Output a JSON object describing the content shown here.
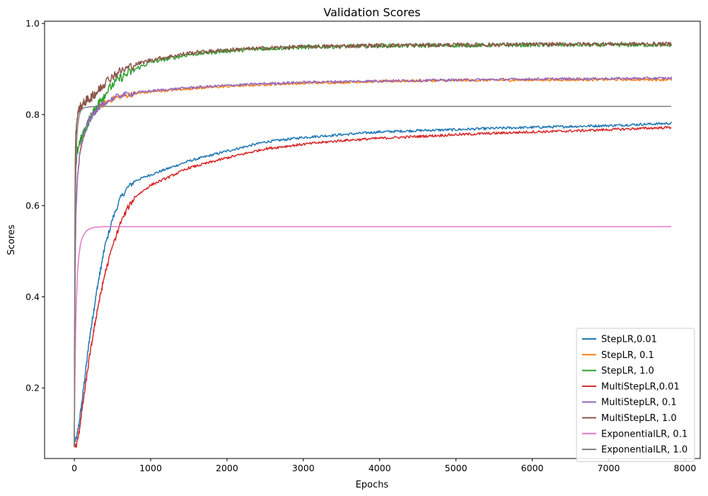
{
  "chart_data": {
    "type": "line",
    "title": "Validation Scores",
    "xlabel": "Epochs",
    "ylabel": "Scores",
    "xlim": [
      -390,
      8200
    ],
    "ylim": [
      0.045,
      1.005
    ],
    "xticks": [
      0,
      1000,
      2000,
      3000,
      4000,
      5000,
      6000,
      7000,
      8000
    ],
    "yticks": [
      0.2,
      0.4,
      0.6,
      0.8,
      1.0
    ],
    "xtick_labels": [
      "0",
      "1000",
      "2000",
      "3000",
      "4000",
      "5000",
      "6000",
      "7000",
      "8000"
    ],
    "ytick_labels": [
      "0.2",
      "0.4",
      "0.6",
      "0.8",
      "1.0"
    ],
    "grid": false,
    "legend_position": "lower-right",
    "series": [
      {
        "name": "StepLR,0.01",
        "color": "#1f77b4",
        "x": [
          0,
          30,
          60,
          100,
          150,
          200,
          300,
          400,
          500,
          600,
          700,
          800,
          1000,
          1200,
          1500,
          2000,
          2500,
          3000,
          3500,
          4000,
          4500,
          5000,
          5500,
          6000,
          6500,
          7000,
          7500,
          7820
        ],
        "y": [
          0.08,
          0.09,
          0.12,
          0.17,
          0.24,
          0.31,
          0.42,
          0.51,
          0.57,
          0.615,
          0.64,
          0.655,
          0.668,
          0.68,
          0.698,
          0.72,
          0.74,
          0.75,
          0.756,
          0.762,
          0.765,
          0.767,
          0.77,
          0.772,
          0.774,
          0.776,
          0.779,
          0.781
        ]
      },
      {
        "name": "StepLR, 0.1",
        "color": "#ff7f0e",
        "x": [
          0,
          10,
          20,
          40,
          70,
          100,
          150,
          200,
          300,
          400,
          500,
          600,
          800,
          1000,
          1500,
          2000,
          2500,
          3000,
          4000,
          5000,
          6000,
          7000,
          7820
        ],
        "y": [
          0.07,
          0.45,
          0.58,
          0.66,
          0.71,
          0.74,
          0.77,
          0.79,
          0.812,
          0.826,
          0.834,
          0.84,
          0.846,
          0.85,
          0.857,
          0.862,
          0.866,
          0.869,
          0.873,
          0.875,
          0.876,
          0.877,
          0.877
        ]
      },
      {
        "name": "StepLR, 1.0",
        "color": "#2ca02c",
        "x": [
          0,
          10,
          20,
          40,
          70,
          100,
          150,
          200,
          300,
          400,
          500,
          600,
          800,
          1000,
          1500,
          2000,
          2500,
          3000,
          4000,
          5000,
          6000,
          7000,
          7820
        ],
        "y": [
          0.07,
          0.6,
          0.68,
          0.72,
          0.74,
          0.75,
          0.77,
          0.79,
          0.82,
          0.845,
          0.865,
          0.88,
          0.9,
          0.915,
          0.932,
          0.94,
          0.945,
          0.948,
          0.951,
          0.952,
          0.953,
          0.953,
          0.953
        ]
      },
      {
        "name": "MultiStepLR,0.01",
        "color": "#d62728",
        "x": [
          0,
          30,
          60,
          100,
          150,
          200,
          300,
          400,
          500,
          600,
          700,
          800,
          1000,
          1200,
          1500,
          2000,
          2500,
          3000,
          3500,
          4000,
          4500,
          5000,
          5500,
          6000,
          6500,
          7000,
          7500,
          7820
        ],
        "y": [
          0.07,
          0.075,
          0.1,
          0.15,
          0.21,
          0.27,
          0.37,
          0.45,
          0.51,
          0.56,
          0.595,
          0.62,
          0.645,
          0.66,
          0.683,
          0.705,
          0.725,
          0.735,
          0.743,
          0.748,
          0.752,
          0.756,
          0.759,
          0.762,
          0.764,
          0.767,
          0.77,
          0.772
        ]
      },
      {
        "name": "MultiStepLR, 0.1",
        "color": "#9467bd",
        "x": [
          0,
          10,
          20,
          40,
          70,
          100,
          150,
          200,
          300,
          400,
          500,
          600,
          800,
          1000,
          1500,
          2000,
          2500,
          3000,
          4000,
          5000,
          6000,
          7000,
          7820
        ],
        "y": [
          0.07,
          0.45,
          0.58,
          0.66,
          0.71,
          0.74,
          0.77,
          0.79,
          0.812,
          0.826,
          0.835,
          0.842,
          0.848,
          0.852,
          0.859,
          0.864,
          0.868,
          0.871,
          0.874,
          0.876,
          0.878,
          0.879,
          0.88
        ]
      },
      {
        "name": "MultiStepLR, 1.0",
        "color": "#8c564b",
        "x": [
          0,
          10,
          20,
          40,
          70,
          100,
          150,
          200,
          300,
          400,
          500,
          600,
          800,
          1000,
          1500,
          2000,
          2500,
          3000,
          4000,
          5000,
          6000,
          7000,
          7820
        ],
        "y": [
          0.07,
          0.68,
          0.76,
          0.8,
          0.815,
          0.82,
          0.83,
          0.835,
          0.85,
          0.87,
          0.885,
          0.895,
          0.91,
          0.92,
          0.935,
          0.942,
          0.946,
          0.949,
          0.952,
          0.953,
          0.954,
          0.955,
          0.955
        ]
      },
      {
        "name": "ExponentialLR, 0.1",
        "color": "#e377c2",
        "x": [
          0,
          10,
          20,
          40,
          60,
          80,
          100,
          130,
          160,
          200,
          250,
          300,
          400,
          600,
          1000,
          3000,
          5000,
          7820
        ],
        "y": [
          0.1,
          0.25,
          0.35,
          0.45,
          0.49,
          0.515,
          0.528,
          0.538,
          0.545,
          0.549,
          0.552,
          0.553,
          0.554,
          0.554,
          0.554,
          0.554,
          0.554,
          0.554
        ]
      },
      {
        "name": "ExponentialLR, 1.0",
        "color": "#7f7f7f",
        "x": [
          0,
          5,
          10,
          20,
          30,
          40,
          60,
          80,
          100,
          130,
          160,
          200,
          300,
          500,
          1000,
          3000,
          5000,
          7820
        ],
        "y": [
          0.07,
          0.35,
          0.55,
          0.68,
          0.74,
          0.77,
          0.795,
          0.807,
          0.812,
          0.815,
          0.816,
          0.817,
          0.818,
          0.818,
          0.818,
          0.818,
          0.818,
          0.818
        ]
      }
    ]
  }
}
